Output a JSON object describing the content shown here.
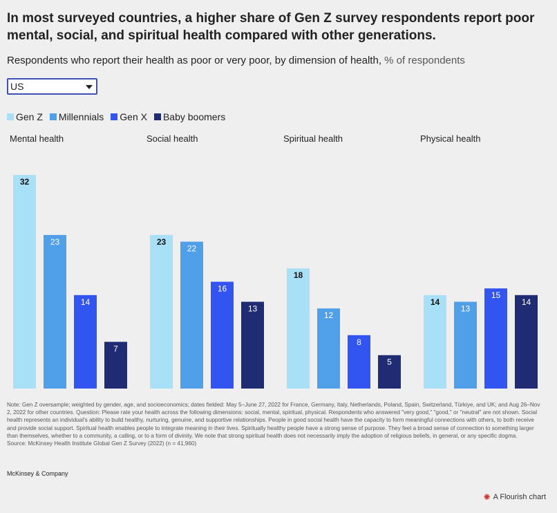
{
  "header": {
    "title": "In most surveyed countries, a higher share of Gen Z survey respondents report poor mental, social, and spiritual health compared with other generations.",
    "subtitle": "Respondents who report their health as poor or very poor, by dimension of health,",
    "subtitle_unit": "% of respondents"
  },
  "filter": {
    "selected": "US"
  },
  "colors": {
    "Gen Z": "#a8e0f7",
    "Millennials": "#4fa0e8",
    "Gen X": "#3254f0",
    "Baby boomers": "#1f2b72",
    "label_dark": "#111111",
    "label_light": "#ffffff"
  },
  "chart_data": {
    "type": "bar",
    "title": "Respondents who report their health as poor or very poor, by dimension of health, % of respondents",
    "panels": [
      "Mental health",
      "Social health",
      "Spiritual health",
      "Physical health"
    ],
    "series": [
      {
        "name": "Gen Z",
        "values": [
          32,
          23,
          18,
          14
        ]
      },
      {
        "name": "Millennials",
        "values": [
          23,
          22,
          12,
          13
        ]
      },
      {
        "name": "Gen X",
        "values": [
          14,
          16,
          8,
          15
        ]
      },
      {
        "name": "Baby boomers",
        "values": [
          7,
          13,
          5,
          14
        ]
      }
    ],
    "ylim": [
      0,
      32
    ],
    "grid": false,
    "legend": "top-left"
  },
  "footer": {
    "note": "Note: Gen Z oversample; weighted by gender, age, and socioeconomics; dates fielded: May 5–June 27, 2022 for France, Germany, Italy, Netherlands, Poland, Spain, Switzerland, Türkiye, and UK; and Aug 26–Nov 2, 2022 for other countries. Question: Please rate your health across the following dimensions: social, mental, spiritual, physical. Respondents who answered \"very good,\" \"good,\" or \"neutral\" are not shown. Social health represents an individual's ability to build healthy, nurturing, genuine, and supportive relationships. People in good social health have the capacity to form meaningful connections with others, to both receive and provide social support. Spiritual health enables people to integrate meaning in their lives. Spiritually healthy people have a strong sense of purpose. They feel a broad sense of connection to something larger than themselves, whether to a community, a calling, or to a form of divinity. We note that strong spiritual health does not necessarily imply the adoption of religious beliefs, in general, or any specific dogma.",
    "source": "Source: McKinsey Health Institute Global Gen Z Survey (2022) (n = 41,960)",
    "brand": "McKinsey & Company",
    "credit": "A Flourish chart"
  }
}
